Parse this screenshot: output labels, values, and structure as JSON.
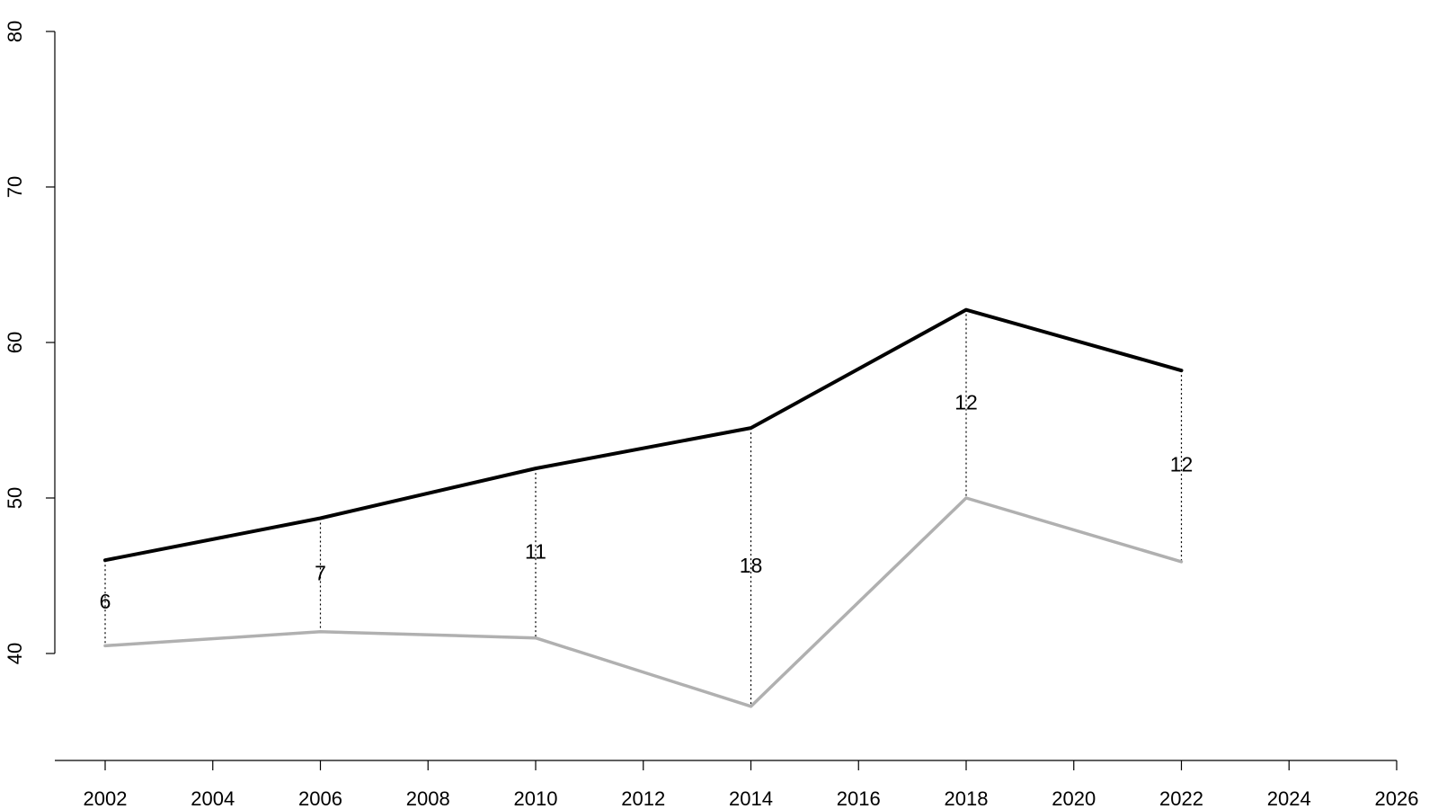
{
  "chart_data": {
    "type": "line",
    "title": "",
    "xlabel": "",
    "ylabel": "",
    "xlim": [
      2001,
      2026
    ],
    "ylim": [
      33,
      80
    ],
    "x_ticks": [
      2002,
      2004,
      2006,
      2008,
      2010,
      2012,
      2014,
      2016,
      2018,
      2020,
      2022,
      2024,
      2026
    ],
    "y_ticks": [
      40,
      50,
      60,
      70,
      80
    ],
    "x": [
      2002,
      2006,
      2010,
      2014,
      2018,
      2022
    ],
    "series": [
      {
        "values": [
          46.0,
          48.7,
          51.9,
          54.5,
          62.1,
          58.2
        ],
        "color": "#000000"
      },
      {
        "values": [
          40.5,
          41.4,
          41.0,
          36.6,
          50.0,
          45.9
        ],
        "color": "#b0b0b0"
      }
    ],
    "gap_labels": [
      "6",
      "7",
      "11",
      "18",
      "12",
      "12"
    ],
    "grid": false,
    "legend": "none"
  }
}
